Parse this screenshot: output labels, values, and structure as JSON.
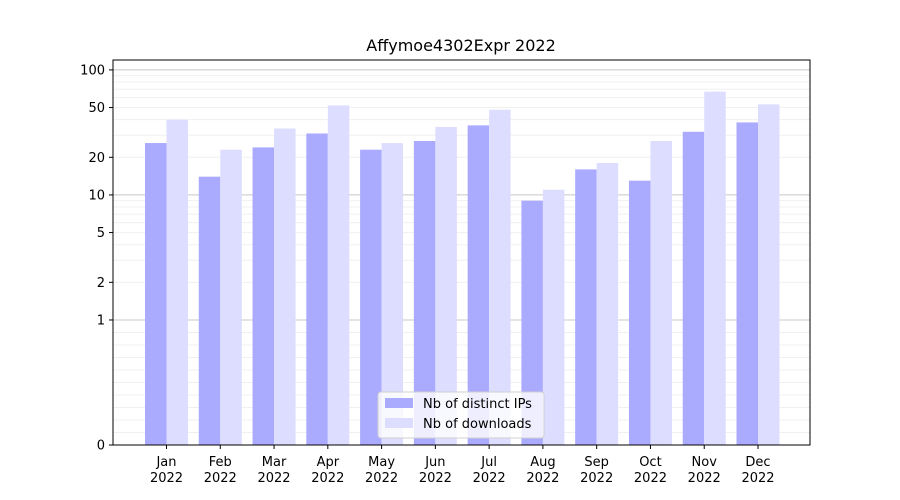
{
  "chart_data": {
    "type": "bar",
    "title": "Affymoe4302Expr 2022",
    "xlabel": "",
    "ylabel": "",
    "y_scale": "symlog",
    "categories": [
      [
        "Jan",
        "2022"
      ],
      [
        "Feb",
        "2022"
      ],
      [
        "Mar",
        "2022"
      ],
      [
        "Apr",
        "2022"
      ],
      [
        "May",
        "2022"
      ],
      [
        "Jun",
        "2022"
      ],
      [
        "Jul",
        "2022"
      ],
      [
        "Aug",
        "2022"
      ],
      [
        "Sep",
        "2022"
      ],
      [
        "Oct",
        "2022"
      ],
      [
        "Nov",
        "2022"
      ],
      [
        "Dec",
        "2022"
      ]
    ],
    "series": [
      {
        "name": "Nb of distinct IPs",
        "color": "#aaaaff",
        "values": [
          26,
          14,
          24,
          31,
          23,
          27,
          36,
          9,
          16,
          13,
          32,
          38
        ]
      },
      {
        "name": "Nb of downloads",
        "color": "#ddddff",
        "values": [
          40,
          23,
          34,
          52,
          26,
          35,
          48,
          11,
          18,
          27,
          67,
          53
        ]
      }
    ],
    "yticks": [
      0,
      1,
      2,
      5,
      10,
      20,
      50,
      100
    ],
    "ylim": [
      0,
      120
    ],
    "grid": true,
    "legend_position": "bottom-center"
  }
}
